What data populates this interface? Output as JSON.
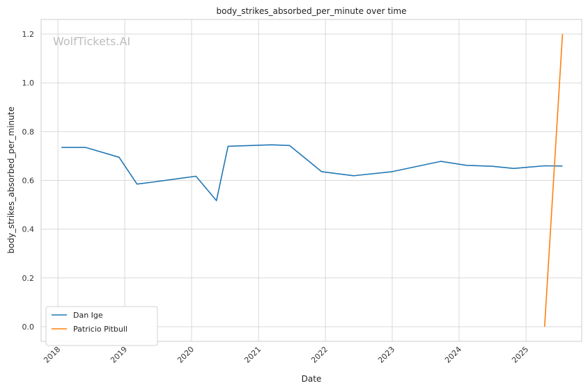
{
  "chart_data": {
    "type": "line",
    "title": "body_strikes_absorbed_per_minute over time",
    "xlabel": "Date",
    "ylabel": "body_strikes_absorbed_per_minute",
    "watermark": "WolfTickets.AI",
    "xlim": [
      "2017-10-01",
      "2025-11-01"
    ],
    "ylim": [
      -0.06,
      1.26
    ],
    "x_ticks": [
      "2018",
      "2019",
      "2020",
      "2021",
      "2022",
      "2023",
      "2024",
      "2025"
    ],
    "y_ticks": [
      "0.0",
      "0.2",
      "0.4",
      "0.6",
      "0.8",
      "1.0",
      "1.2"
    ],
    "grid": true,
    "legend_position": "lower-left",
    "series": [
      {
        "name": "Dan Ige",
        "color": "#1f77b4",
        "points": [
          {
            "x": "2018-01-20",
            "y": 0.735
          },
          {
            "x": "2018-06-01",
            "y": 0.735
          },
          {
            "x": "2018-12-01",
            "y": 0.695
          },
          {
            "x": "2019-03-09",
            "y": 0.585
          },
          {
            "x": "2019-06-01",
            "y": 0.593
          },
          {
            "x": "2020-01-25",
            "y": 0.617
          },
          {
            "x": "2020-05-16",
            "y": 0.517
          },
          {
            "x": "2020-07-18",
            "y": 0.74
          },
          {
            "x": "2021-03-13",
            "y": 0.746
          },
          {
            "x": "2021-06-19",
            "y": 0.743
          },
          {
            "x": "2021-12-11",
            "y": 0.636
          },
          {
            "x": "2022-06-04",
            "y": 0.619
          },
          {
            "x": "2023-01-01",
            "y": 0.636
          },
          {
            "x": "2023-09-23",
            "y": 0.678
          },
          {
            "x": "2024-02-10",
            "y": 0.662
          },
          {
            "x": "2024-07-01",
            "y": 0.658
          },
          {
            "x": "2024-10-26",
            "y": 0.649
          },
          {
            "x": "2025-04-12",
            "y": 0.66
          },
          {
            "x": "2025-07-19",
            "y": 0.659
          }
        ]
      },
      {
        "name": "Patricio Pitbull",
        "color": "#ff7f0e",
        "points": [
          {
            "x": "2025-04-12",
            "y": 0.0
          },
          {
            "x": "2025-07-19",
            "y": 1.2
          }
        ]
      }
    ]
  }
}
